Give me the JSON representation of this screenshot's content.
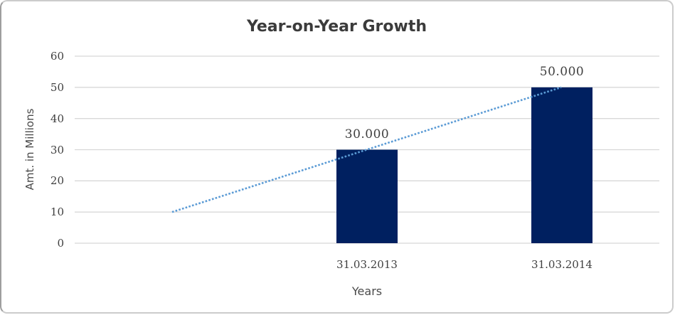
{
  "chart_data": {
    "type": "bar",
    "title": "Year-on-Year Growth",
    "xlabel": "Years",
    "ylabel": "Amt. in Millions",
    "categories": [
      "31.03.2013",
      "31.03.2014"
    ],
    "values": [
      30,
      50
    ],
    "data_labels": [
      "30.000",
      "50.000"
    ],
    "ylim": [
      0,
      60
    ],
    "yticks": [
      0,
      10,
      20,
      30,
      40,
      50,
      60
    ],
    "grid": true,
    "legend": "none",
    "trendline": {
      "style": "dotted",
      "points": [
        {
          "slot": 0,
          "value": 10
        },
        {
          "slot": 2,
          "value": 50
        }
      ]
    },
    "colors": {
      "bar": "#002060",
      "trendline": "#5b9bd5",
      "gridline": "#d8d8d8",
      "text": "#3f3f3f"
    }
  }
}
